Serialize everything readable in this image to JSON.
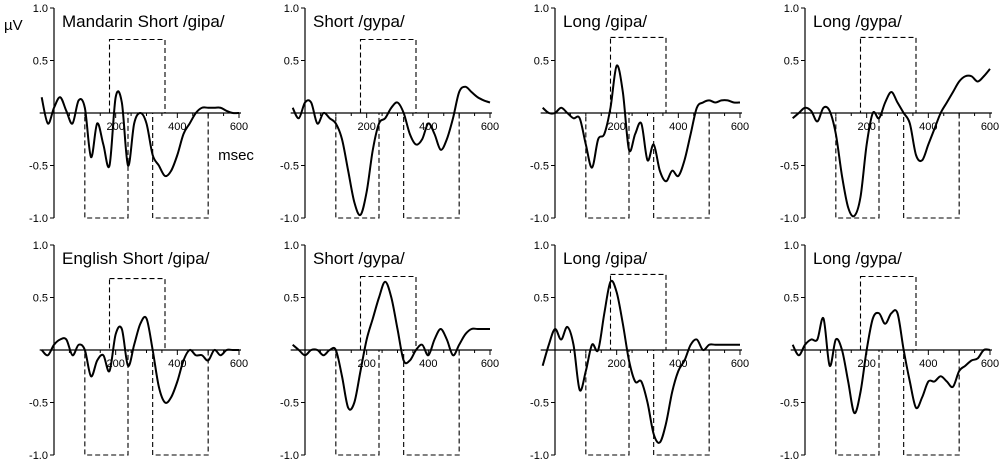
{
  "unit_y": "µV",
  "unit_x": "msec",
  "colors": {
    "line": "#000000",
    "background": "#ffffff"
  },
  "chart_data": [
    {
      "type": "line",
      "title": "Mandarin Short /gipa/",
      "xlim": [
        -40,
        600
      ],
      "ylim": [
        -1.0,
        1.0
      ],
      "xticks": [
        200,
        400,
        600
      ],
      "yticks": [
        "1.0",
        "0.5",
        "0",
        "-0.5",
        "-1.0"
      ],
      "windows": [
        [
          180,
          360,
          0,
          0.7
        ],
        [
          100,
          240,
          -1.0,
          0
        ],
        [
          320,
          500,
          -1.0,
          0
        ]
      ],
      "series": [
        {
          "x": [
            -40,
            -20,
            0,
            20,
            40,
            60,
            80,
            100,
            120,
            140,
            160,
            180,
            200,
            220,
            240,
            260,
            280,
            300,
            320,
            340,
            360,
            380,
            400,
            420,
            440,
            460,
            480,
            500,
            520,
            540,
            560,
            580,
            600
          ],
          "y": [
            0.15,
            -0.1,
            0.05,
            0.15,
            0.02,
            -0.1,
            0.12,
            0.05,
            -0.42,
            -0.1,
            -0.3,
            -0.5,
            0.15,
            0.1,
            -0.5,
            -0.1,
            0.0,
            -0.1,
            -0.4,
            -0.5,
            -0.6,
            -0.55,
            -0.4,
            -0.2,
            -0.1,
            0.0,
            0.05,
            0.05,
            0.05,
            0.05,
            0.02,
            0.0,
            0.0
          ]
        }
      ]
    },
    {
      "type": "line",
      "title": "Short /gypa/",
      "xlim": [
        -40,
        600
      ],
      "ylim": [
        -1.0,
        1.0
      ],
      "xticks": [
        200,
        400,
        600
      ],
      "yticks": [
        "1.0",
        "0.5",
        "0",
        "-0.5",
        "-1.0"
      ],
      "windows": [
        [
          180,
          360,
          0,
          0.7
        ],
        [
          100,
          240,
          -1.0,
          0
        ],
        [
          320,
          500,
          -1.0,
          0
        ]
      ],
      "series": [
        {
          "x": [
            -40,
            -20,
            0,
            20,
            40,
            60,
            80,
            100,
            120,
            140,
            160,
            180,
            200,
            220,
            240,
            260,
            280,
            300,
            320,
            340,
            360,
            380,
            400,
            420,
            440,
            460,
            480,
            500,
            520,
            540,
            560,
            580,
            600
          ],
          "y": [
            0.05,
            -0.05,
            0.1,
            0.1,
            -0.1,
            0.0,
            -0.05,
            -0.1,
            -0.25,
            -0.55,
            -0.85,
            -0.97,
            -0.75,
            -0.35,
            -0.1,
            -0.05,
            0.05,
            0.1,
            0.0,
            -0.2,
            -0.3,
            -0.25,
            -0.1,
            -0.2,
            -0.35,
            -0.25,
            -0.05,
            0.2,
            0.25,
            0.2,
            0.15,
            0.12,
            0.1
          ]
        }
      ]
    },
    {
      "type": "line",
      "title": "Long /gipa/",
      "xlim": [
        -40,
        600
      ],
      "ylim": [
        -1.0,
        1.0
      ],
      "xticks": [
        200,
        400,
        600
      ],
      "yticks": [
        "1.0",
        "0.5",
        "0",
        "-0.5",
        "-1.0"
      ],
      "windows": [
        [
          180,
          360,
          0,
          0.72
        ],
        [
          100,
          240,
          -1.0,
          0
        ],
        [
          320,
          500,
          -1.0,
          0
        ]
      ],
      "series": [
        {
          "x": [
            -40,
            -20,
            0,
            20,
            40,
            60,
            80,
            100,
            120,
            140,
            160,
            180,
            200,
            220,
            240,
            260,
            280,
            300,
            320,
            340,
            360,
            380,
            400,
            420,
            440,
            460,
            480,
            500,
            520,
            540,
            560,
            580,
            600
          ],
          "y": [
            0.05,
            0.0,
            0.0,
            0.05,
            0.0,
            -0.05,
            -0.05,
            -0.3,
            -0.52,
            -0.25,
            -0.2,
            0.05,
            0.45,
            0.2,
            -0.35,
            -0.2,
            -0.1,
            -0.45,
            -0.3,
            -0.55,
            -0.65,
            -0.55,
            -0.6,
            -0.45,
            -0.2,
            0.05,
            0.1,
            0.12,
            0.1,
            0.12,
            0.12,
            0.1,
            0.1
          ]
        }
      ]
    },
    {
      "type": "line",
      "title": "Long /gypa/",
      "xlim": [
        -40,
        600
      ],
      "ylim": [
        -1.0,
        1.0
      ],
      "xticks": [
        200,
        400,
        600
      ],
      "yticks": [
        "1.0",
        "0.5",
        "0",
        "-0.5",
        "-1.0"
      ],
      "windows": [
        [
          180,
          360,
          0,
          0.72
        ],
        [
          100,
          240,
          -1.0,
          0
        ],
        [
          320,
          500,
          -1.0,
          0
        ]
      ],
      "series": [
        {
          "x": [
            -40,
            -20,
            0,
            20,
            40,
            60,
            80,
            100,
            120,
            140,
            160,
            180,
            200,
            220,
            240,
            260,
            280,
            300,
            320,
            340,
            360,
            380,
            400,
            420,
            440,
            460,
            480,
            500,
            520,
            540,
            560,
            580,
            600
          ],
          "y": [
            -0.05,
            0.0,
            0.05,
            0.02,
            -0.08,
            0.05,
            0.02,
            -0.2,
            -0.6,
            -0.9,
            -0.98,
            -0.8,
            -0.3,
            0.0,
            -0.05,
            0.1,
            0.2,
            0.1,
            0.0,
            -0.1,
            -0.4,
            -0.45,
            -0.3,
            -0.15,
            0.0,
            0.1,
            0.2,
            0.3,
            0.35,
            0.35,
            0.3,
            0.35,
            0.42
          ]
        }
      ]
    },
    {
      "type": "line",
      "title": "English Short /gipa/",
      "xlim": [
        -40,
        600
      ],
      "ylim": [
        -1.0,
        1.0
      ],
      "xticks": [
        200,
        400,
        600
      ],
      "yticks": [
        "1.0",
        "0.5",
        "0",
        "-0.5",
        "-1.0"
      ],
      "windows": [
        [
          180,
          360,
          0,
          0.68
        ],
        [
          100,
          240,
          -1.0,
          0
        ],
        [
          320,
          500,
          -1.0,
          0
        ]
      ],
      "series": [
        {
          "x": [
            -40,
            -20,
            0,
            20,
            40,
            60,
            80,
            100,
            120,
            140,
            160,
            180,
            200,
            220,
            240,
            260,
            280,
            300,
            320,
            340,
            360,
            380,
            400,
            420,
            440,
            460,
            480,
            500,
            520,
            540,
            560,
            580,
            600
          ],
          "y": [
            0.0,
            -0.05,
            0.05,
            0.1,
            0.1,
            -0.05,
            0.05,
            0.0,
            -0.25,
            -0.1,
            -0.05,
            -0.2,
            0.15,
            0.2,
            -0.15,
            0.05,
            0.25,
            0.3,
            0.0,
            -0.35,
            -0.5,
            -0.45,
            -0.3,
            -0.1,
            0.0,
            -0.05,
            -0.05,
            -0.1,
            0.0,
            -0.05,
            0.0,
            0.0,
            0.0
          ]
        }
      ]
    },
    {
      "type": "line",
      "title": "Short /gypa/",
      "xlim": [
        -40,
        600
      ],
      "ylim": [
        -1.0,
        1.0
      ],
      "xticks": [
        200,
        400,
        600
      ],
      "yticks": [
        "1.0",
        "0.5",
        "0",
        "-0.5",
        "-1.0"
      ],
      "windows": [
        [
          180,
          360,
          0,
          0.7
        ],
        [
          100,
          240,
          -1.0,
          0
        ],
        [
          320,
          500,
          -1.0,
          0
        ]
      ],
      "series": [
        {
          "x": [
            -40,
            -20,
            0,
            20,
            40,
            60,
            80,
            100,
            120,
            140,
            160,
            180,
            200,
            220,
            240,
            260,
            280,
            300,
            320,
            340,
            360,
            380,
            400,
            420,
            440,
            460,
            480,
            500,
            520,
            540,
            560,
            580,
            600
          ],
          "y": [
            0.05,
            0.0,
            -0.05,
            0.0,
            0.0,
            -0.05,
            0.0,
            0.0,
            -0.25,
            -0.55,
            -0.5,
            -0.2,
            0.1,
            0.3,
            0.5,
            0.65,
            0.5,
            0.2,
            -0.1,
            -0.1,
            0.0,
            0.05,
            -0.05,
            0.1,
            0.2,
            0.1,
            -0.05,
            0.05,
            0.15,
            0.2,
            0.2,
            0.2,
            0.2
          ]
        }
      ]
    },
    {
      "type": "line",
      "title": "Long /gipa/",
      "xlim": [
        -40,
        600
      ],
      "ylim": [
        -1.0,
        1.0
      ],
      "xticks": [
        200,
        400,
        600
      ],
      "yticks": [
        "1.0",
        "0.5",
        "0",
        "-0.5",
        "-1.0"
      ],
      "windows": [
        [
          180,
          360,
          0,
          0.72
        ],
        [
          100,
          240,
          -1.0,
          0
        ],
        [
          320,
          500,
          -1.0,
          0
        ]
      ],
      "series": [
        {
          "x": [
            -40,
            -20,
            0,
            20,
            40,
            60,
            80,
            100,
            120,
            140,
            160,
            180,
            200,
            220,
            240,
            260,
            280,
            300,
            320,
            340,
            360,
            380,
            400,
            420,
            440,
            460,
            480,
            500,
            520,
            540,
            560,
            580,
            600
          ],
          "y": [
            -0.15,
            0.05,
            0.2,
            0.1,
            0.22,
            0.05,
            -0.38,
            -0.2,
            0.05,
            0.0,
            0.35,
            0.65,
            0.55,
            0.25,
            -0.1,
            -0.3,
            -0.3,
            -0.5,
            -0.8,
            -0.88,
            -0.7,
            -0.4,
            -0.2,
            -0.1,
            0.05,
            0.1,
            0.0,
            0.05,
            0.05,
            0.05,
            0.05,
            0.05,
            0.05
          ]
        }
      ]
    },
    {
      "type": "line",
      "title": "Long /gypa/",
      "xlim": [
        -40,
        600
      ],
      "ylim": [
        -1.0,
        1.0
      ],
      "xticks": [
        200,
        400,
        600
      ],
      "yticks": [
        "1.0",
        "0.5",
        "0",
        "-0.5",
        "-1.0"
      ],
      "windows": [
        [
          180,
          360,
          0,
          0.7
        ],
        [
          100,
          240,
          -1.0,
          0
        ],
        [
          320,
          500,
          -1.0,
          0
        ]
      ],
      "series": [
        {
          "x": [
            -40,
            -20,
            0,
            20,
            40,
            60,
            80,
            100,
            120,
            140,
            160,
            180,
            200,
            220,
            240,
            260,
            280,
            300,
            320,
            340,
            360,
            380,
            400,
            420,
            440,
            460,
            480,
            500,
            520,
            540,
            560,
            580,
            600
          ],
          "y": [
            0.05,
            -0.05,
            0.05,
            0.1,
            0.1,
            0.3,
            -0.15,
            0.1,
            0.0,
            -0.3,
            -0.6,
            -0.4,
            0.0,
            0.3,
            0.35,
            0.25,
            0.35,
            0.35,
            0.0,
            -0.3,
            -0.55,
            -0.45,
            -0.3,
            -0.3,
            -0.25,
            -0.3,
            -0.35,
            -0.2,
            -0.15,
            -0.1,
            -0.08,
            0.0,
            0.0
          ]
        }
      ]
    }
  ]
}
